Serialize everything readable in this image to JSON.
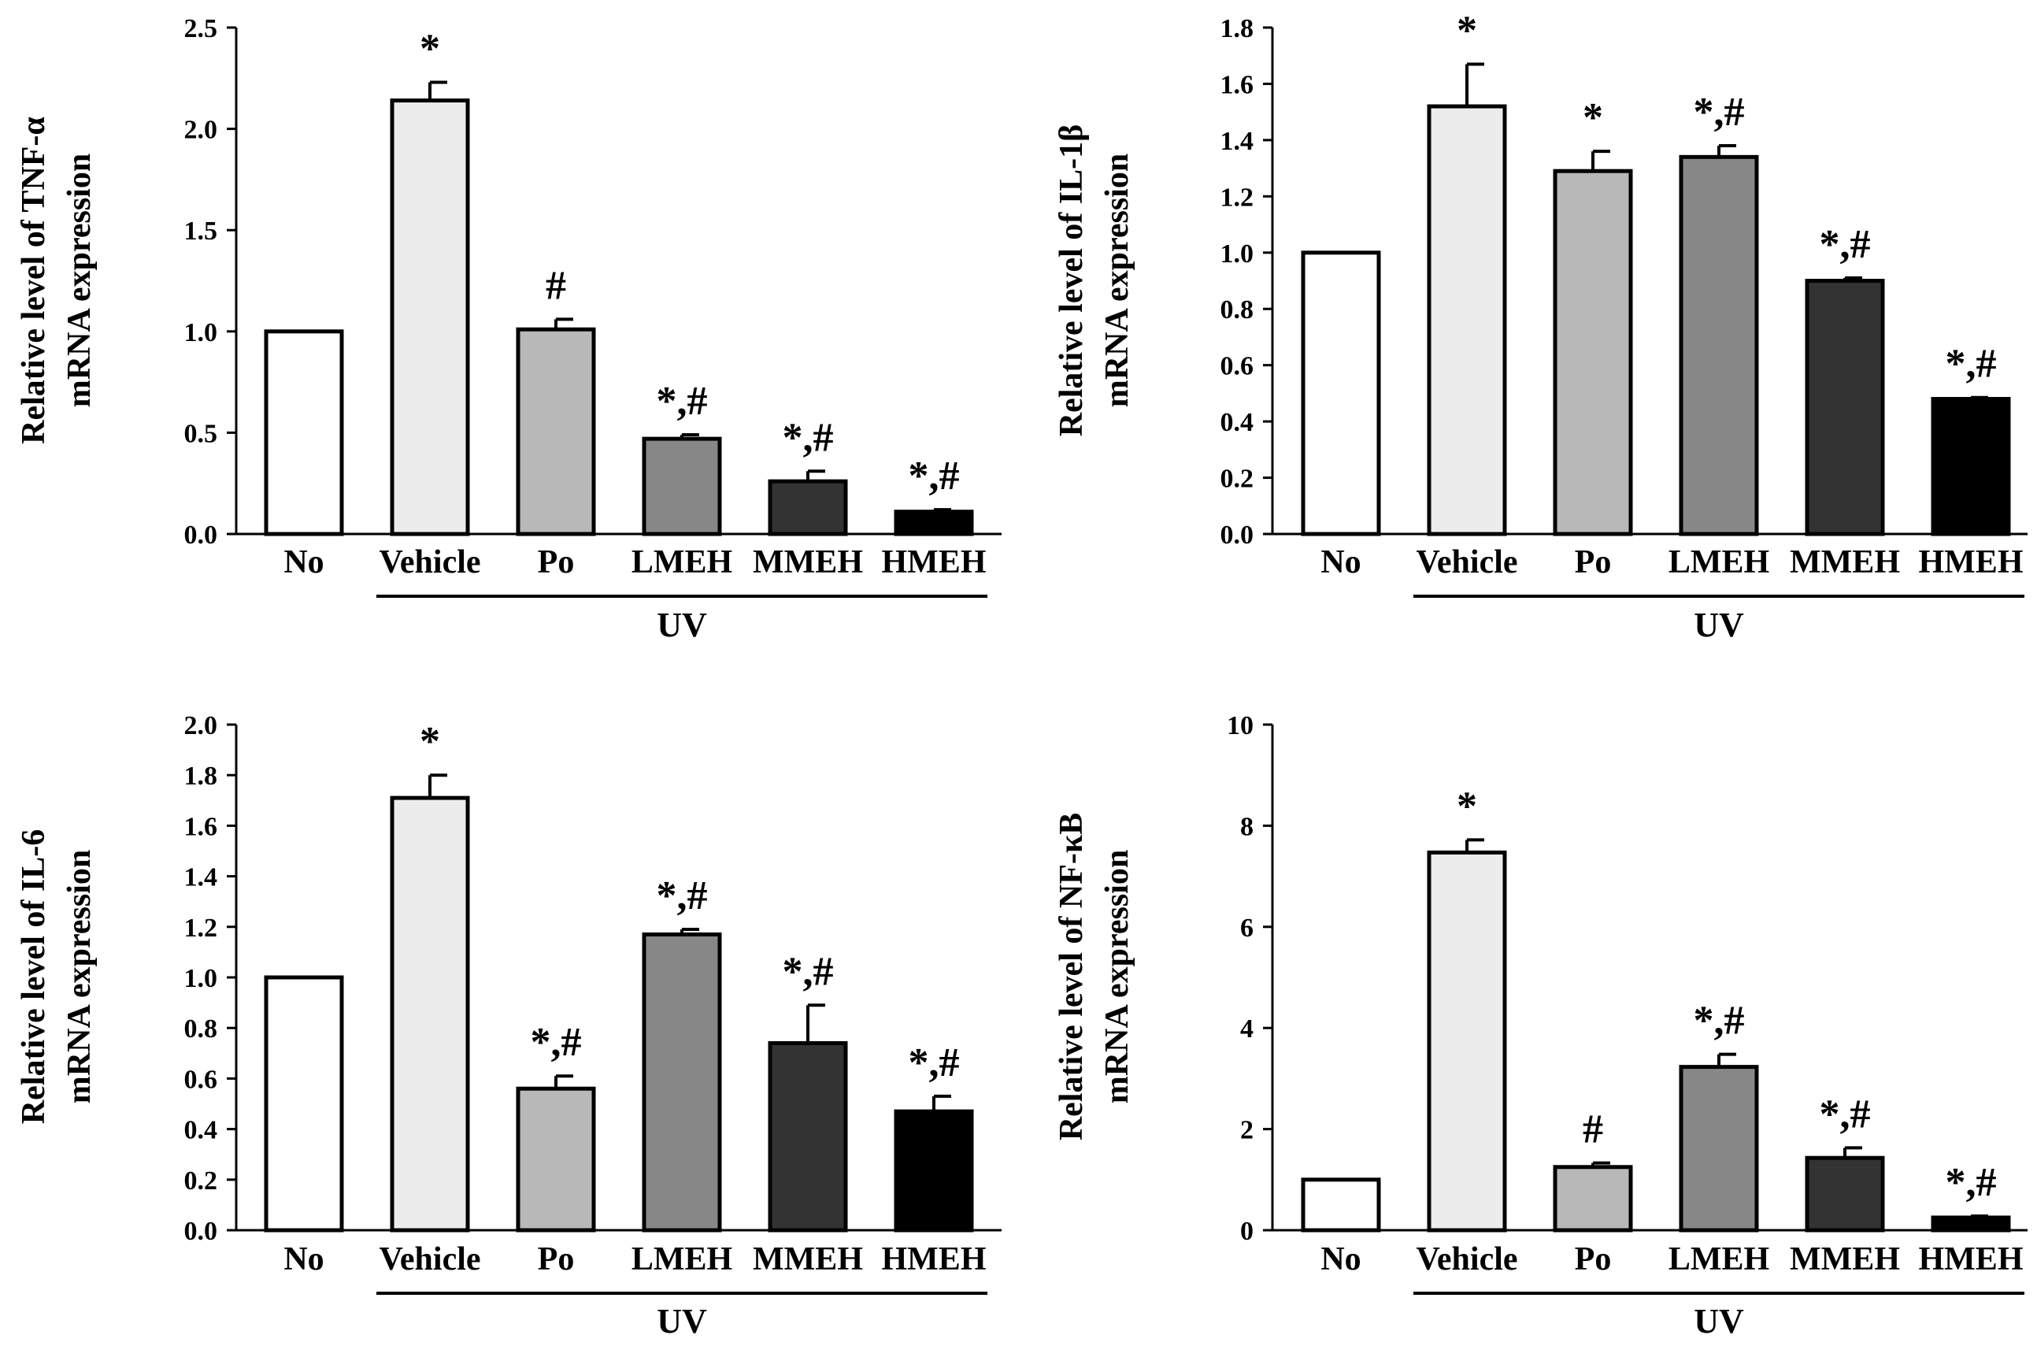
{
  "chart_data": [
    {
      "type": "bar",
      "ylabel": [
        "Relative level of TNF-α",
        "mRNA expression"
      ],
      "categories": [
        "No",
        "Vehicle",
        "Po",
        "LMEH",
        "MMEH",
        "HMEH"
      ],
      "values": [
        1.0,
        2.14,
        1.01,
        0.47,
        0.26,
        0.11
      ],
      "errors": [
        0,
        0.09,
        0.05,
        0.02,
        0.05,
        0.01
      ],
      "annotations": [
        "",
        "*",
        "#",
        "*,#",
        "*,#",
        "*,#"
      ],
      "colors": [
        "#ffffff",
        "#ececec",
        "#b8b8b8",
        "#878787",
        "#333333",
        "#000000"
      ],
      "ylim": [
        0,
        2.5
      ],
      "yticks": [
        "0.0",
        "0.5",
        "1.0",
        "1.5",
        "2.0",
        "2.5"
      ],
      "group_label": "UV"
    },
    {
      "type": "bar",
      "ylabel": [
        "Relative  level of IL-1β",
        "mRNA expression"
      ],
      "categories": [
        "No",
        "Vehicle",
        "Po",
        "LMEH",
        "MMEH",
        "HMEH"
      ],
      "values": [
        1.0,
        1.52,
        1.29,
        1.34,
        0.9,
        0.48
      ],
      "errors": [
        0,
        0.15,
        0.07,
        0.04,
        0.01,
        0.005
      ],
      "annotations": [
        "",
        "*",
        "*",
        "*,#",
        "*,#",
        "*,#"
      ],
      "colors": [
        "#ffffff",
        "#ececec",
        "#b8b8b8",
        "#878787",
        "#333333",
        "#000000"
      ],
      "ylim": [
        0,
        1.8
      ],
      "yticks": [
        "0.0",
        "0.2",
        "0.4",
        "0.6",
        "0.8",
        "1.0",
        "1.2",
        "1.4",
        "1.6",
        "1.8"
      ],
      "group_label": "UV"
    },
    {
      "type": "bar",
      "ylabel": [
        "Relative  level of IL-6",
        "mRNA expression"
      ],
      "categories": [
        "No",
        "Vehicle",
        "Po",
        "LMEH",
        "MMEH",
        "HMEH"
      ],
      "values": [
        1.0,
        1.71,
        0.56,
        1.17,
        0.74,
        0.47
      ],
      "errors": [
        0,
        0.09,
        0.05,
        0.02,
        0.15,
        0.06
      ],
      "annotations": [
        "",
        "*",
        "*,#",
        "*,#",
        "*,#",
        "*,#"
      ],
      "colors": [
        "#ffffff",
        "#ececec",
        "#b8b8b8",
        "#878787",
        "#333333",
        "#000000"
      ],
      "ylim": [
        0,
        2.0
      ],
      "yticks": [
        "0.0",
        "0.2",
        "0.4",
        "0.6",
        "0.8",
        "1.0",
        "1.2",
        "1.4",
        "1.6",
        "1.8",
        "2.0"
      ],
      "group_label": "UV"
    },
    {
      "type": "bar",
      "ylabel": [
        "Relative  level of NF-κB",
        "mRNA expression"
      ],
      "categories": [
        "No",
        "Vehicle",
        "Po",
        "LMEH",
        "MMEH",
        "HMEH"
      ],
      "values": [
        1.0,
        7.47,
        1.25,
        3.23,
        1.43,
        0.25
      ],
      "errors": [
        0,
        0.25,
        0.08,
        0.25,
        0.2,
        0.03
      ],
      "annotations": [
        "",
        "*",
        "#",
        "*,#",
        "*,#",
        "*,#"
      ],
      "colors": [
        "#ffffff",
        "#ececec",
        "#b8b8b8",
        "#878787",
        "#333333",
        "#000000"
      ],
      "ylim": [
        0,
        10
      ],
      "yticks": [
        "0",
        "2",
        "4",
        "6",
        "8",
        "10"
      ],
      "group_label": "UV"
    }
  ]
}
